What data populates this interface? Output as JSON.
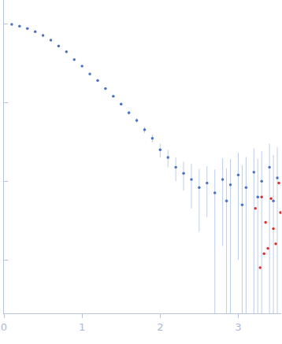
{
  "chart_data": {
    "type": "scatter",
    "log": "y",
    "grid": false,
    "tick_labels": "x",
    "marker": "circle",
    "xlim": [
      0,
      3.55
    ],
    "xticks": [
      0,
      1,
      2,
      3
    ],
    "ylim": [
      0.00021,
      2
    ],
    "yticks": [
      1,
      0.1,
      0.01,
      0.001
    ],
    "series": [
      {
        "color": "#4a72c4",
        "x": [
          0.1,
          0.2,
          0.3,
          0.4,
          0.5,
          0.6,
          0.7,
          0.8,
          0.9,
          1.0,
          1.1,
          1.2,
          1.3,
          1.4,
          1.5,
          1.6,
          1.7,
          1.8,
          1.9,
          2.0,
          2.1,
          2.2,
          2.3,
          2.4,
          2.5,
          2.6,
          2.7,
          2.8,
          2.85,
          2.9,
          3.0,
          3.05,
          3.1,
          3.2,
          3.25,
          3.3,
          3.4,
          3.45,
          3.5
        ],
        "values": [
          0.98,
          0.93,
          0.87,
          0.79,
          0.71,
          0.62,
          0.52,
          0.44,
          0.35,
          0.29,
          0.23,
          0.19,
          0.15,
          0.12,
          0.095,
          0.074,
          0.059,
          0.045,
          0.035,
          0.025,
          0.02,
          0.015,
          0.0126,
          0.0105,
          0.0083,
          0.0095,
          0.0071,
          0.0105,
          0.0056,
          0.009,
          0.012,
          0.005,
          0.0083,
          0.013,
          0.0063,
          0.01,
          0.015,
          0.0056,
          0.011
        ],
        "error": [
          0.02,
          0.01,
          0.01,
          0.01,
          0.01,
          0.01,
          0.01,
          0.008,
          0.007,
          0.006,
          0.005,
          0.005,
          0.004,
          0.004,
          0.004,
          0.004,
          0.004,
          0.004,
          0.004,
          0.005,
          0.005,
          0.005,
          0.005,
          0.006,
          0.006,
          0.006,
          0.007,
          0.009,
          0.009,
          0.01,
          0.011,
          0.011,
          0.012,
          0.013,
          0.013,
          0.014,
          0.015,
          0.016,
          0.016
        ]
      },
      {
        "color": "#e0302a",
        "x": [
          3.22,
          3.28,
          3.3,
          3.33,
          3.35,
          3.38,
          3.42,
          3.45,
          3.48,
          3.52,
          3.54
        ],
        "values": [
          0.0045,
          0.0008,
          0.0063,
          0.0012,
          0.003,
          0.0014,
          0.006,
          0.0025,
          0.0016,
          0.0095,
          0.004
        ]
      }
    ]
  }
}
